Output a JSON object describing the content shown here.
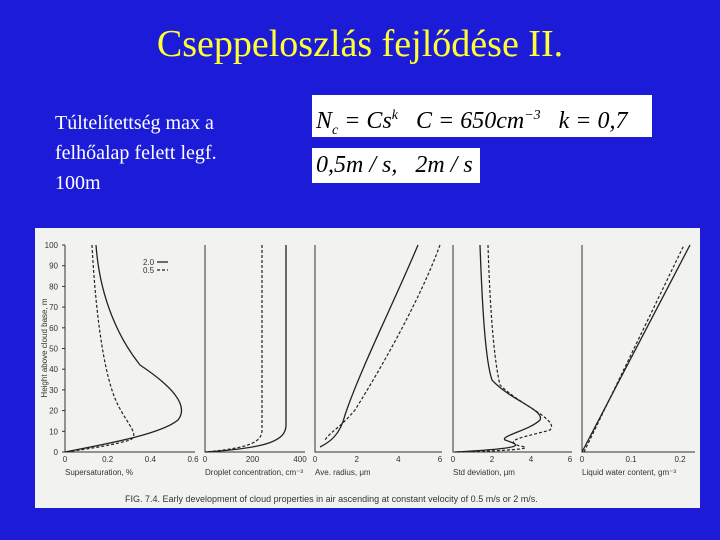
{
  "title": "Cseppeloszlás fejlődése II.",
  "body_text": [
    "Túltelítettség max a",
    "felhőalap felett legf.",
    "100m"
  ],
  "formulas": [
    [
      "N",
      "c",
      "= Cs",
      "k",
      "C = 650cm",
      "−3",
      "k = 0,7"
    ],
    [
      "0,5m / s,   2m / s"
    ]
  ],
  "figure": {
    "y_axis_label": "Height above cloud base, m",
    "y_ticks": [
      "0",
      "10",
      "20",
      "30",
      "40",
      "50",
      "60",
      "70",
      "80",
      "90",
      "100"
    ],
    "legend": [
      "2.0",
      "0.5"
    ],
    "panels": [
      {
        "x_ticks": [
          "0",
          "0.2",
          "0.4",
          "0.6"
        ],
        "x_label": "Supersaturation, %"
      },
      {
        "x_ticks": [
          "0",
          "200",
          "400"
        ],
        "x_label": "Droplet concentration, cm⁻³"
      },
      {
        "x_ticks": [
          "0",
          "2",
          "4",
          "6"
        ],
        "x_label": "Ave. radius, μm"
      },
      {
        "x_ticks": [
          "0",
          "2",
          "4",
          "6"
        ],
        "x_label": "Std deviation, μm"
      },
      {
        "x_ticks": [
          "0",
          "0.1",
          "0.2"
        ],
        "x_label": "Liquid water content, gm⁻³"
      }
    ],
    "caption": "FIG. 7.4. Early development of cloud properties in air ascending at constant velocity of 0.5 m/s or 2 m/s."
  }
}
